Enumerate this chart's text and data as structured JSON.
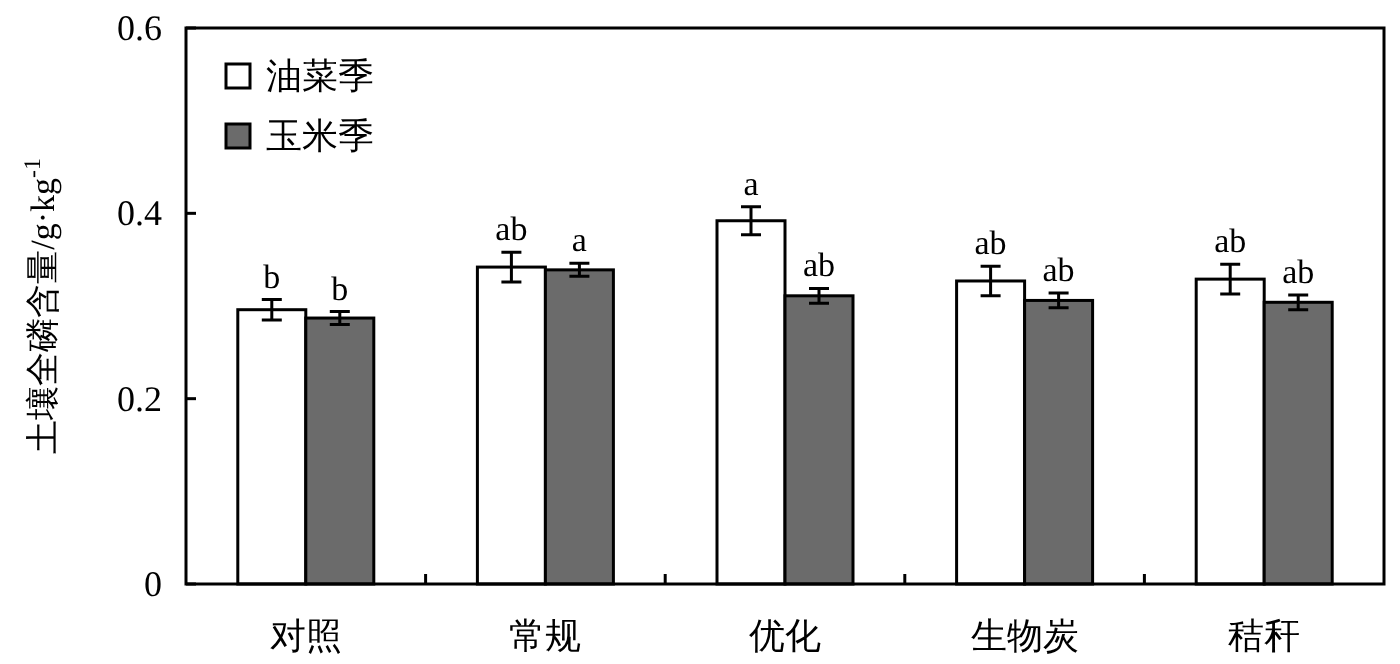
{
  "chart_data": {
    "type": "bar",
    "ylabel": "土壤全磷含量/g·kg$^{-1}$",
    "categories": [
      "对照",
      "常规",
      "优化",
      "生物炭",
      "秸秆"
    ],
    "series": [
      {
        "name": "油菜季",
        "color": "#ffffff",
        "values": [
          0.296,
          0.342,
          0.392,
          0.327,
          0.329
        ],
        "errors": [
          0.011,
          0.016,
          0.015,
          0.016,
          0.016
        ],
        "value_labels": [
          "b",
          "ab",
          "a",
          "ab",
          "ab"
        ]
      },
      {
        "name": "玉米季",
        "color": "#6b6b6b",
        "values": [
          0.287,
          0.339,
          0.311,
          0.306,
          0.304
        ],
        "errors": [
          0.007,
          0.007,
          0.008,
          0.008,
          0.008
        ],
        "value_labels": [
          "b",
          "a",
          "ab",
          "ab",
          "ab"
        ]
      }
    ],
    "ylim": [
      0,
      0.6
    ],
    "yticks": [
      0,
      0.2,
      0.4,
      0.6
    ],
    "legend": "top left"
  }
}
